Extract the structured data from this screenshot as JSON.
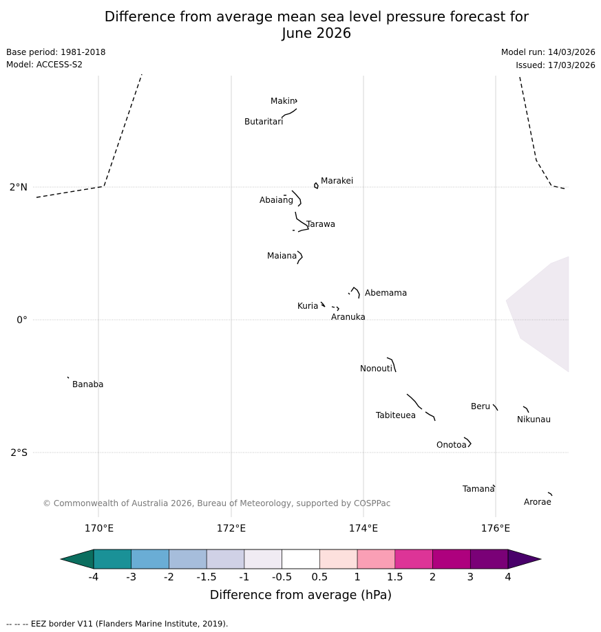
{
  "title": {
    "line1": "Difference from average mean sea level pressure forecast for",
    "line2": "June 2026"
  },
  "meta": {
    "base_period": "Base period: 1981-2018",
    "model": "Model: ACCESS-S2",
    "model_run": "Model run: 14/03/2026",
    "issued": "Issued: 17/03/2026"
  },
  "map": {
    "lat_labels": [
      "2°N",
      "0°",
      "2°S"
    ],
    "lon_labels": [
      "170°E",
      "172°E",
      "174°E",
      "176°E"
    ],
    "places": [
      {
        "name": "Makin"
      },
      {
        "name": "Butaritari"
      },
      {
        "name": "Marakei"
      },
      {
        "name": "Abaiang"
      },
      {
        "name": "Tarawa"
      },
      {
        "name": "Maiana"
      },
      {
        "name": "Abemama"
      },
      {
        "name": "Kuria"
      },
      {
        "name": "Aranuka"
      },
      {
        "name": "Nonouti"
      },
      {
        "name": "Banaba"
      },
      {
        "name": "Beru"
      },
      {
        "name": "Nikunau"
      },
      {
        "name": "Tabiteuea"
      },
      {
        "name": "Onotoa"
      },
      {
        "name": "Tamana"
      },
      {
        "name": "Arorae"
      }
    ],
    "copyright": "© Commonwealth of Australia 2026, Bureau of Meteorology, supported by COSPPac",
    "anomaly_region_color": "#efeaf1"
  },
  "colorbar": {
    "tick_labels": [
      "-4",
      "-3",
      "-2",
      "-1.5",
      "-1",
      "-0.5",
      "0.5",
      "1",
      "1.5",
      "2",
      "3",
      "4"
    ],
    "colors": [
      "#0b6e5f",
      "#1a9197",
      "#6aadd5",
      "#a6bddb",
      "#d0d1e6",
      "#f0ebf3",
      "#ffffff",
      "#fde0dd",
      "#fa9fb5",
      "#dd3497",
      "#ae017e",
      "#7a0177",
      "#49006a"
    ],
    "label": "Difference from average (hPa)"
  },
  "footer": "--  --  -- EEZ border V11 (Flanders Marine Institute, 2019)."
}
